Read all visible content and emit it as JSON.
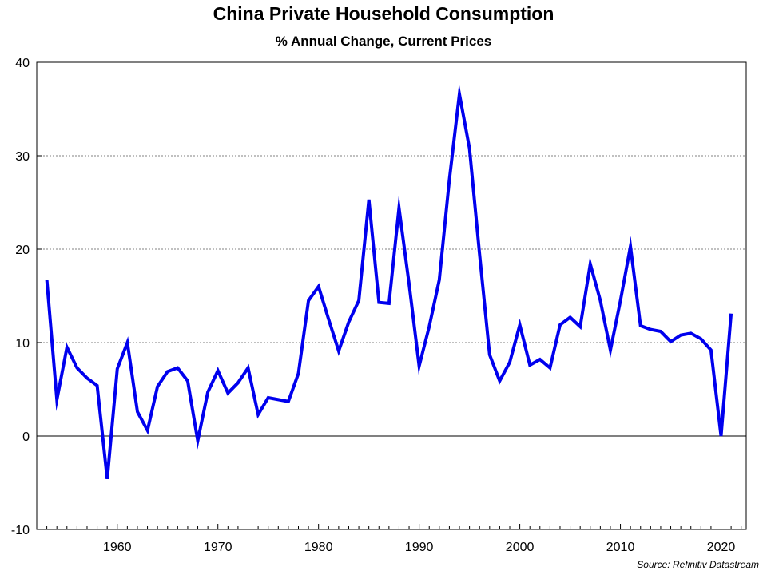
{
  "chart_data": {
    "type": "line",
    "title": "China Private Household Consumption",
    "subtitle": "% Annual Change, Current Prices",
    "xlabel": "",
    "ylabel": "",
    "xlim": [
      1952,
      2022.5
    ],
    "ylim": [
      -10,
      40
    ],
    "x_ticks": [
      1960,
      1970,
      1980,
      1990,
      2000,
      2010,
      2020
    ],
    "y_ticks": [
      -10,
      0,
      10,
      20,
      30,
      40
    ],
    "gridlines_y": [
      10,
      20,
      30
    ],
    "zero_line": true,
    "series": [
      {
        "name": "China Private Household Consumption",
        "color": "#0000ee",
        "x": [
          1953,
          1954,
          1955,
          1956,
          1957,
          1958,
          1959,
          1960,
          1961,
          1962,
          1963,
          1964,
          1965,
          1966,
          1967,
          1968,
          1969,
          1970,
          1971,
          1972,
          1973,
          1974,
          1975,
          1976,
          1977,
          1978,
          1979,
          1980,
          1981,
          1982,
          1983,
          1984,
          1985,
          1986,
          1987,
          1988,
          1989,
          1990,
          1991,
          1992,
          1993,
          1994,
          1995,
          1996,
          1997,
          1998,
          1999,
          2000,
          2001,
          2002,
          2003,
          2004,
          2005,
          2006,
          2007,
          2008,
          2009,
          2010,
          2011,
          2012,
          2013,
          2014,
          2015,
          2016,
          2017,
          2018,
          2019,
          2020,
          2021
        ],
        "values": [
          16.7,
          3.9,
          9.5,
          7.3,
          6.2,
          5.4,
          -4.6,
          7.2,
          10.0,
          2.6,
          0.6,
          5.3,
          6.9,
          7.3,
          5.9,
          -0.5,
          4.7,
          7.0,
          4.6,
          5.7,
          7.3,
          2.3,
          4.1,
          3.9,
          3.7,
          6.7,
          14.5,
          16.0,
          12.5,
          9.1,
          12.2,
          14.5,
          25.3,
          14.3,
          14.2,
          24.4,
          16.3,
          7.5,
          11.7,
          16.7,
          27.4,
          36.6,
          30.8,
          19.5,
          8.7,
          5.9,
          7.9,
          11.9,
          7.6,
          8.2,
          7.3,
          11.9,
          12.7,
          11.7,
          18.4,
          14.5,
          9.2,
          14.5,
          20.3,
          11.8,
          11.4,
          11.2,
          10.1,
          10.8,
          11.0,
          10.4,
          9.2,
          0.0,
          13.1
        ]
      }
    ]
  },
  "source": "Source: Refinitiv Datastream"
}
